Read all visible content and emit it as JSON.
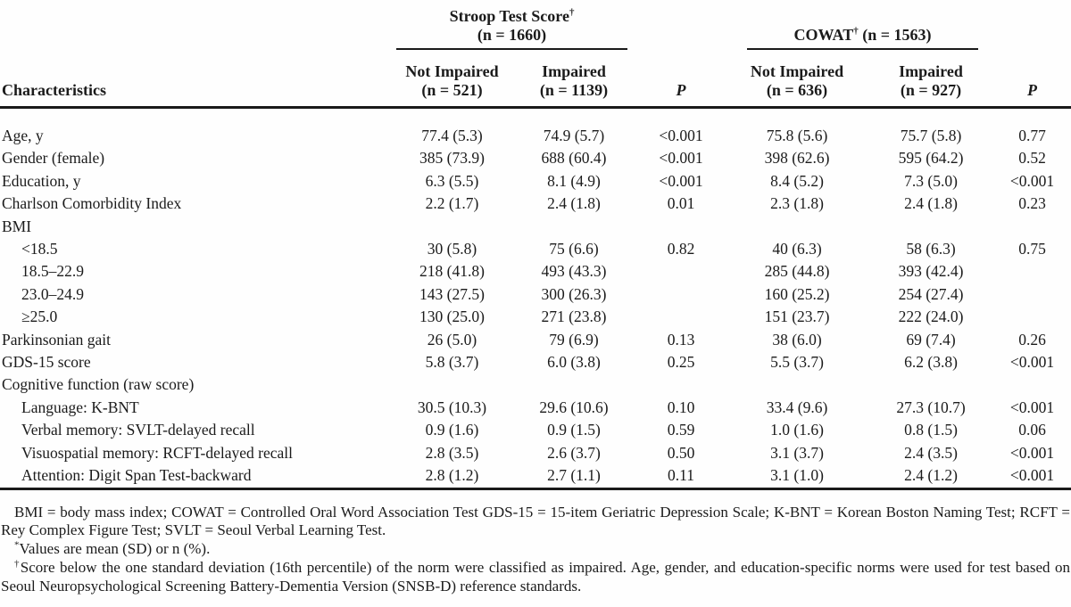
{
  "colors": {
    "background": "#fefefe",
    "text": "#1b1b1b",
    "rule": "#1a1a1a"
  },
  "header": {
    "characteristics_label": "Characteristics",
    "stroop": {
      "title": "Stroop Test Score",
      "marker": "†",
      "n_line": "(n = 1660)",
      "not_impaired_label": "Not Impaired",
      "not_impaired_n": "(n = 521)",
      "impaired_label": "Impaired",
      "impaired_n": "(n = 1139)",
      "p_label": "P"
    },
    "cowat": {
      "title": "COWAT",
      "marker": "†",
      "n_inline": "(n = 1563)",
      "not_impaired_label": "Not Impaired",
      "not_impaired_n": "(n = 636)",
      "impaired_label": "Impaired",
      "impaired_n": "(n = 927)",
      "p_label": "P"
    }
  },
  "rows": [
    {
      "label": "Age, y",
      "indent": 0,
      "cells": [
        "77.4 (5.3)",
        "74.9 (5.7)",
        "<0.001",
        "75.8 (5.6)",
        "75.7 (5.8)",
        "0.77"
      ]
    },
    {
      "label": "Gender (female)",
      "indent": 0,
      "cells": [
        "385 (73.9)",
        "688 (60.4)",
        "<0.001",
        "398 (62.6)",
        "595 (64.2)",
        "0.52"
      ]
    },
    {
      "label": "Education, y",
      "indent": 0,
      "cells": [
        "6.3 (5.5)",
        "8.1 (4.9)",
        "<0.001",
        "8.4 (5.2)",
        "7.3 (5.0)",
        "<0.001"
      ]
    },
    {
      "label": "Charlson Comorbidity Index",
      "indent": 0,
      "cells": [
        "2.2 (1.7)",
        "2.4 (1.8)",
        "0.01",
        "2.3 (1.8)",
        "2.4 (1.8)",
        "0.23"
      ]
    },
    {
      "label": "BMI",
      "indent": 0,
      "cells": [
        "",
        "",
        "",
        "",
        "",
        ""
      ]
    },
    {
      "label": "<18.5",
      "indent": 1,
      "cells": [
        "30 (5.8)",
        "75 (6.6)",
        "0.82",
        "40 (6.3)",
        "58 (6.3)",
        "0.75"
      ]
    },
    {
      "label": "18.5–22.9",
      "indent": 1,
      "cells": [
        "218 (41.8)",
        "493 (43.3)",
        "",
        "285 (44.8)",
        "393 (42.4)",
        ""
      ]
    },
    {
      "label": "23.0–24.9",
      "indent": 1,
      "cells": [
        "143 (27.5)",
        "300 (26.3)",
        "",
        "160 (25.2)",
        "254 (27.4)",
        ""
      ]
    },
    {
      "label": "≥25.0",
      "indent": 1,
      "cells": [
        "130 (25.0)",
        "271 (23.8)",
        "",
        "151 (23.7)",
        "222 (24.0)",
        ""
      ]
    },
    {
      "label": "Parkinsonian gait",
      "indent": 0,
      "cells": [
        "26 (5.0)",
        "79 (6.9)",
        "0.13",
        "38 (6.0)",
        "69 (7.4)",
        "0.26"
      ]
    },
    {
      "label": "GDS-15 score",
      "indent": 0,
      "cells": [
        "5.8 (3.7)",
        "6.0 (3.8)",
        "0.25",
        "5.5 (3.7)",
        "6.2 (3.8)",
        "<0.001"
      ]
    },
    {
      "label": "Cognitive function (raw score)",
      "indent": 0,
      "cells": [
        "",
        "",
        "",
        "",
        "",
        ""
      ]
    },
    {
      "label": "Language: K-BNT",
      "indent": 1,
      "cells": [
        "30.5 (10.3)",
        "29.6 (10.6)",
        "0.10",
        "33.4 (9.6)",
        "27.3 (10.7)",
        "<0.001"
      ]
    },
    {
      "label": "Verbal memory: SVLT-delayed recall",
      "indent": 1,
      "cells": [
        "0.9 (1.6)",
        "0.9 (1.5)",
        "0.59",
        "1.0 (1.6)",
        "0.8 (1.5)",
        "0.06"
      ]
    },
    {
      "label": "Visuospatial memory: RCFT-delayed recall",
      "indent": 1,
      "cells": [
        "2.8 (3.5)",
        "2.6 (3.7)",
        "0.50",
        "3.1 (3.7)",
        "2.4 (3.5)",
        "<0.001"
      ]
    },
    {
      "label": "Attention: Digit Span Test-backward",
      "indent": 1,
      "cells": [
        "2.8 (1.2)",
        "2.7 (1.1)",
        "0.11",
        "3.1 (1.0)",
        "2.4 (1.2)",
        "<0.001"
      ]
    }
  ],
  "footnotes": {
    "abbreviations": "BMI = body mass index; COWAT = Controlled Oral Word Association Test GDS-15 = 15-item Geriatric Depression Scale; K-BNT = Korean Boston Naming Test; RCFT = Rey Complex Figure Test; SVLT = Seoul Verbal Learning Test.",
    "values_marker": "*",
    "values_note": "Values are mean (SD) or n (%).",
    "dagger_marker": "†",
    "dagger_note": "Score below the one standard deviation (16th percentile) of the norm were classified as impaired. Age, gender, and education-specific norms were used for test based on Seoul Neuropsychological Screening Battery-Dementia Version (SNSB-D) reference standards."
  }
}
